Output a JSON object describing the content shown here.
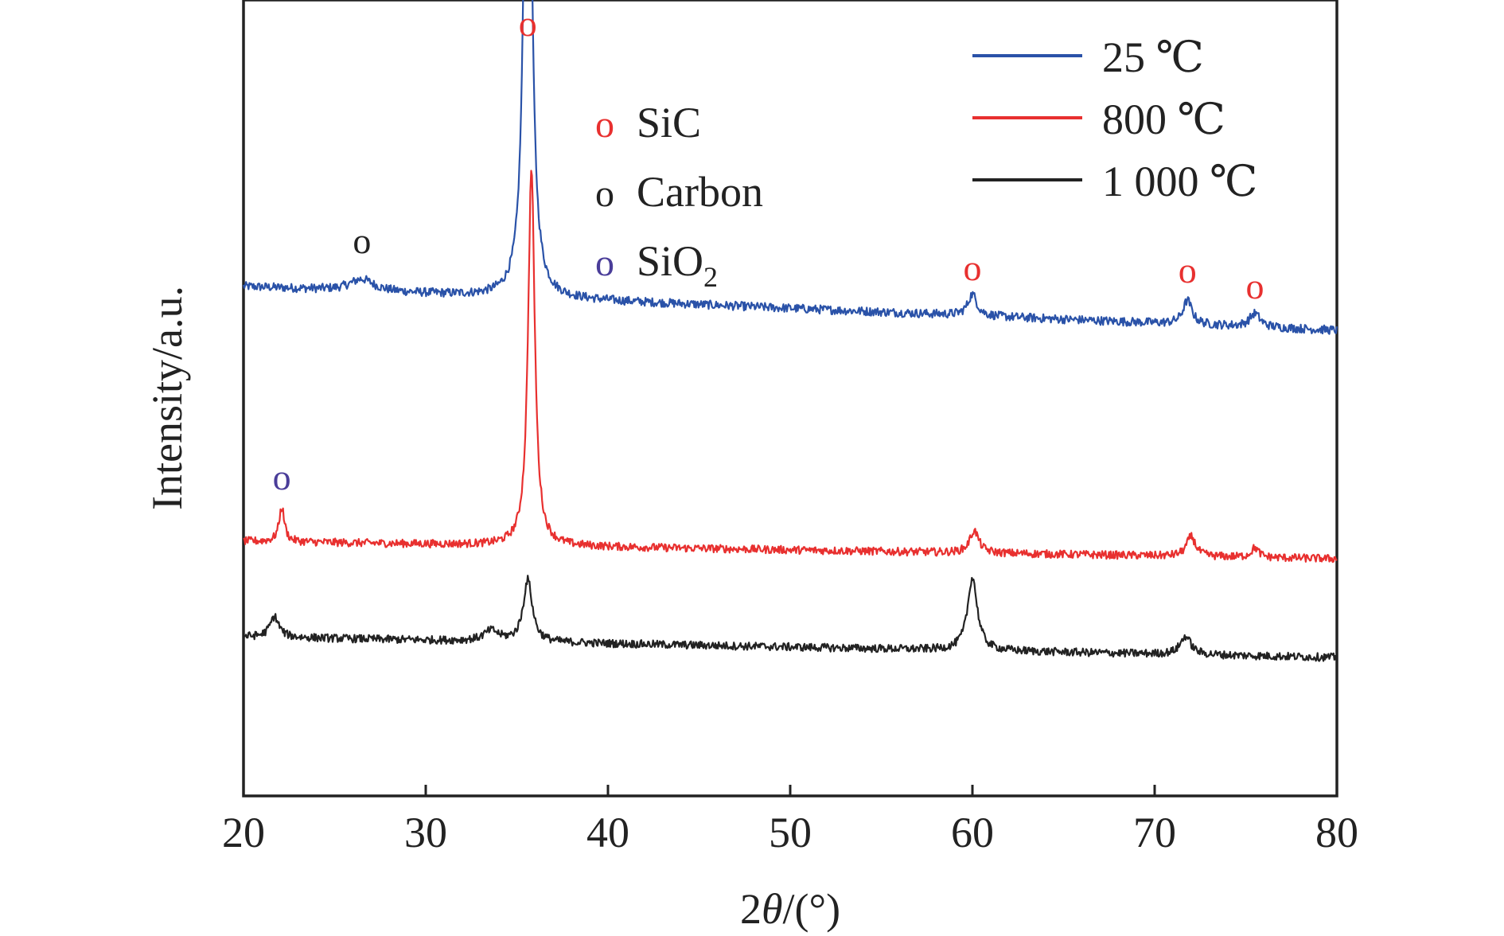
{
  "chart_data": {
    "type": "line",
    "xlabel_prefix": "2",
    "xlabel_theta": "θ",
    "xlabel_suffix": "/(°)",
    "ylabel": "Intensity/a.u.",
    "xlim": [
      20,
      80
    ],
    "ylim": [
      0,
      100
    ],
    "x_ticks": [
      "20",
      "30",
      "40",
      "50",
      "60",
      "70",
      "80"
    ],
    "y_ticks_shown": false,
    "grid": false,
    "legend_position": "top-right",
    "series": [
      {
        "name": "25 ℃",
        "color": "#2a52a8",
        "baseline": 64.0,
        "end": 58.5,
        "noise": 0.55,
        "peaks": [
          {
            "x": 26.5,
            "h": 1.5,
            "w": 0.8
          },
          {
            "x": 35.6,
            "h": 89,
            "w": 0.22
          },
          {
            "x": 60.0,
            "h": 2.7,
            "w": 0.3
          },
          {
            "x": 71.8,
            "h": 3.0,
            "w": 0.3
          },
          {
            "x": 75.5,
            "h": 1.7,
            "w": 0.35
          }
        ]
      },
      {
        "name": "800 ℃",
        "color": "#e8302f",
        "baseline": 32.0,
        "end": 29.8,
        "noise": 0.5,
        "peaks": [
          {
            "x": 22.1,
            "h": 4.3,
            "w": 0.18
          },
          {
            "x": 35.8,
            "h": 47.5,
            "w": 0.22
          },
          {
            "x": 60.1,
            "h": 2.8,
            "w": 0.3
          },
          {
            "x": 72.0,
            "h": 2.5,
            "w": 0.3
          },
          {
            "x": 75.5,
            "h": 1.2,
            "w": 0.25
          }
        ]
      },
      {
        "name": "1 000 ℃",
        "color": "#222222",
        "baseline": 20.0,
        "end": 17.4,
        "noise": 0.5,
        "peaks": [
          {
            "x": 21.7,
            "h": 2.6,
            "w": 0.3
          },
          {
            "x": 33.6,
            "h": 1.3,
            "w": 0.5
          },
          {
            "x": 35.6,
            "h": 7.8,
            "w": 0.3
          },
          {
            "x": 60.0,
            "h": 9.2,
            "w": 0.32
          },
          {
            "x": 71.7,
            "h": 2.3,
            "w": 0.35
          }
        ]
      }
    ],
    "phase_legend": [
      {
        "label": "SiC",
        "sub": "",
        "color": "#e8302f"
      },
      {
        "label": "Carbon",
        "sub": "",
        "color": "#222222"
      },
      {
        "label": "SiO",
        "sub": "2",
        "color": "#4a3d99"
      }
    ],
    "peak_markers": [
      {
        "x": 35.6,
        "y": 95.5,
        "symbol": "o",
        "color": "#e8302f"
      },
      {
        "x": 26.5,
        "y": 68.2,
        "symbol": "o",
        "color": "#222222"
      },
      {
        "x": 60.0,
        "y": 64.8,
        "symbol": "o",
        "color": "#e8302f"
      },
      {
        "x": 71.8,
        "y": 64.5,
        "symbol": "o",
        "color": "#e8302f"
      },
      {
        "x": 75.5,
        "y": 62.5,
        "symbol": "o",
        "color": "#e8302f"
      },
      {
        "x": 22.1,
        "y": 38.5,
        "symbol": "o",
        "color": "#4a3d99"
      }
    ]
  }
}
